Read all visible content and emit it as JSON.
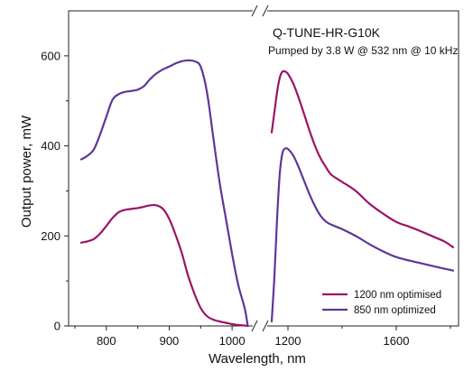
{
  "chart_data": {
    "type": "line",
    "title": "",
    "annotations": [
      "Q-TUNE-HR-G10K",
      "Pumped by 3.8 W  @ 532 nm @ 10 kHz"
    ],
    "xlabel": "Wavelength, nm",
    "ylabel": "Output power, mW",
    "xlim": [
      740,
      1830
    ],
    "ylim": [
      0,
      700
    ],
    "x_axis_break": [
      1030,
      1130
    ],
    "x_ticks": [
      800,
      900,
      1000,
      1200,
      1600
    ],
    "y_ticks": [
      0,
      200,
      400,
      600
    ],
    "grid": false,
    "legend_position": "bottom-right",
    "series": [
      {
        "name": "1200 nm optimised",
        "color": "#9b1466",
        "segments": [
          {
            "x": [
              760,
              770,
              780,
              790,
              800,
              810,
              820,
              830,
              840,
              850,
              860,
              870,
              880,
              890,
              900,
              910,
              920,
              930,
              940,
              950,
              960,
              970,
              980,
              990,
              1000,
              1010,
              1020,
              1025
            ],
            "y": [
              185,
              188,
              193,
              205,
              222,
              240,
              253,
              258,
              260,
              262,
              265,
              268,
              268,
              260,
              238,
              203,
              162,
              112,
              72,
              40,
              22,
              14,
              10,
              7,
              4,
              2,
              1,
              0
            ]
          },
          {
            "x": [
              1140,
              1150,
              1160,
              1170,
              1180,
              1190,
              1200,
              1220,
              1240,
              1260,
              1280,
              1300,
              1320,
              1340,
              1360,
              1400,
              1450,
              1500,
              1550,
              1600,
              1650,
              1700,
              1750,
              1780,
              1810
            ],
            "y": [
              430,
              475,
              520,
              552,
              565,
              565,
              560,
              538,
              506,
              470,
              433,
              400,
              373,
              353,
              336,
              320,
              300,
              272,
              250,
              231,
              220,
              208,
              195,
              187,
              175
            ]
          }
        ]
      },
      {
        "name": "850 nm optimized",
        "color": "#5f3699",
        "segments": [
          {
            "x": [
              760,
              770,
              780,
              790,
              800,
              810,
              820,
              830,
              840,
              850,
              860,
              870,
              880,
              890,
              900,
              910,
              920,
              930,
              940,
              950,
              960,
              970,
              980,
              990,
              1000,
              1010,
              1020,
              1025
            ],
            "y": [
              370,
              378,
              392,
              425,
              465,
              503,
              515,
              520,
              522,
              525,
              533,
              549,
              561,
              570,
              576,
              583,
              588,
              590,
              588,
              576,
              520,
              420,
              320,
              240,
              160,
              90,
              40,
              0
            ]
          },
          {
            "x": [
              1140,
              1150,
              1160,
              1170,
              1180,
              1190,
              1200,
              1220,
              1240,
              1260,
              1280,
              1300,
              1320,
              1340,
              1360,
              1400,
              1450,
              1500,
              1550,
              1600,
              1650,
              1700,
              1750,
              1780,
              1810
            ],
            "y": [
              10,
              110,
              240,
              340,
              385,
              394,
              393,
              378,
              352,
              322,
              292,
              266,
              245,
              232,
              225,
              215,
              200,
              182,
              166,
              153,
              145,
              138,
              131,
              127,
              123
            ]
          }
        ]
      }
    ]
  }
}
